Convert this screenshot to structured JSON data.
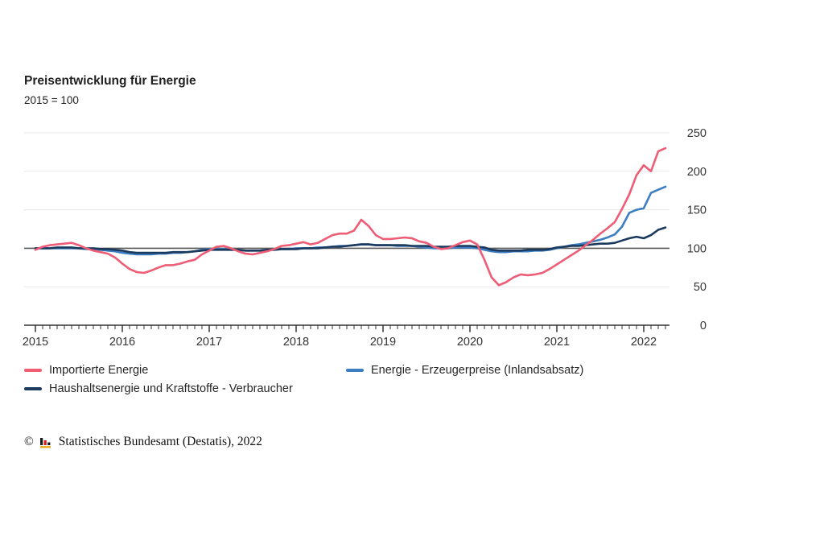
{
  "chart_data": {
    "type": "line",
    "title": "Preisentwicklung für Energie",
    "subtitle": "2015 = 100",
    "x_year_labels": [
      "2015",
      "2016",
      "2017",
      "2018",
      "2019",
      "2020",
      "2021",
      "2022"
    ],
    "x_range_months": "Jan 2015 - Apr 2022",
    "frequency": "monthly",
    "yticks": [
      0,
      50,
      100,
      150,
      200,
      250
    ],
    "ylim": [
      0,
      250
    ],
    "baseline_value": 100,
    "grid": "horizontal-only",
    "legend_position": "below",
    "axis_side": "right",
    "colors": {
      "grid": "#e8e8e8",
      "baseline": "#595959",
      "axis": "#333333",
      "tick_label": "#333333"
    },
    "series": [
      {
        "name": "Importierte Energie",
        "color": "#ee5d75",
        "values": [
          98,
          102,
          104,
          105,
          106,
          107,
          104,
          100,
          97,
          95,
          93,
          88,
          80,
          73,
          69,
          68,
          71,
          75,
          78,
          78,
          80,
          83,
          85,
          92,
          97,
          102,
          103,
          100,
          96,
          93,
          92,
          94,
          96,
          99,
          103,
          104,
          106,
          108,
          105,
          107,
          112,
          117,
          119,
          119,
          123,
          137,
          129,
          117,
          112,
          112,
          113,
          114,
          113,
          109,
          107,
          102,
          99,
          100,
          104,
          108,
          110,
          105,
          85,
          62,
          52,
          56,
          62,
          66,
          65,
          66,
          68,
          73,
          79,
          85,
          91,
          97,
          104,
          111,
          119,
          126,
          134,
          151,
          170,
          195,
          208,
          200,
          226,
          230
        ]
      },
      {
        "name": "Energie - Erzeugerpreise (Inlandsabsatz)",
        "color": "#3d7dc1",
        "values": [
          100,
          100,
          100,
          100,
          100,
          100,
          100,
          99,
          99,
          98,
          97,
          96,
          94,
          93,
          92,
          92,
          92,
          93,
          93,
          94,
          94,
          95,
          96,
          98,
          99,
          99,
          99,
          98,
          98,
          97,
          97,
          97,
          98,
          98,
          99,
          99,
          100,
          100,
          100,
          101,
          101,
          102,
          103,
          103,
          104,
          105,
          105,
          104,
          104,
          104,
          103,
          103,
          103,
          102,
          101,
          100,
          100,
          100,
          101,
          101,
          101,
          100,
          98,
          96,
          95,
          95,
          96,
          96,
          96,
          97,
          97,
          98,
          100,
          102,
          104,
          105,
          107,
          109,
          111,
          114,
          118,
          128,
          146,
          150,
          152,
          172,
          176,
          180
        ]
      },
      {
        "name": "Haushaltsenergie und Kraftstoffe - Verbraucher",
        "color": "#1b3a5e",
        "values": [
          100,
          100,
          100,
          101,
          101,
          101,
          100,
          100,
          100,
          99,
          99,
          98,
          97,
          95,
          94,
          94,
          94,
          94,
          94,
          95,
          95,
          95,
          96,
          97,
          98,
          98,
          98,
          98,
          98,
          97,
          97,
          97,
          98,
          98,
          99,
          99,
          99,
          100,
          100,
          100,
          101,
          102,
          102,
          103,
          104,
          105,
          105,
          104,
          104,
          104,
          104,
          104,
          103,
          103,
          103,
          102,
          102,
          102,
          103,
          103,
          103,
          102,
          101,
          98,
          97,
          97,
          97,
          97,
          98,
          98,
          98,
          99,
          101,
          102,
          103,
          103,
          104,
          105,
          106,
          106,
          107,
          110,
          113,
          115,
          113,
          117,
          124,
          127
        ]
      }
    ]
  },
  "footer": {
    "copyright": "©",
    "source": "Statistisches Bundesamt (Destatis), 2022"
  }
}
